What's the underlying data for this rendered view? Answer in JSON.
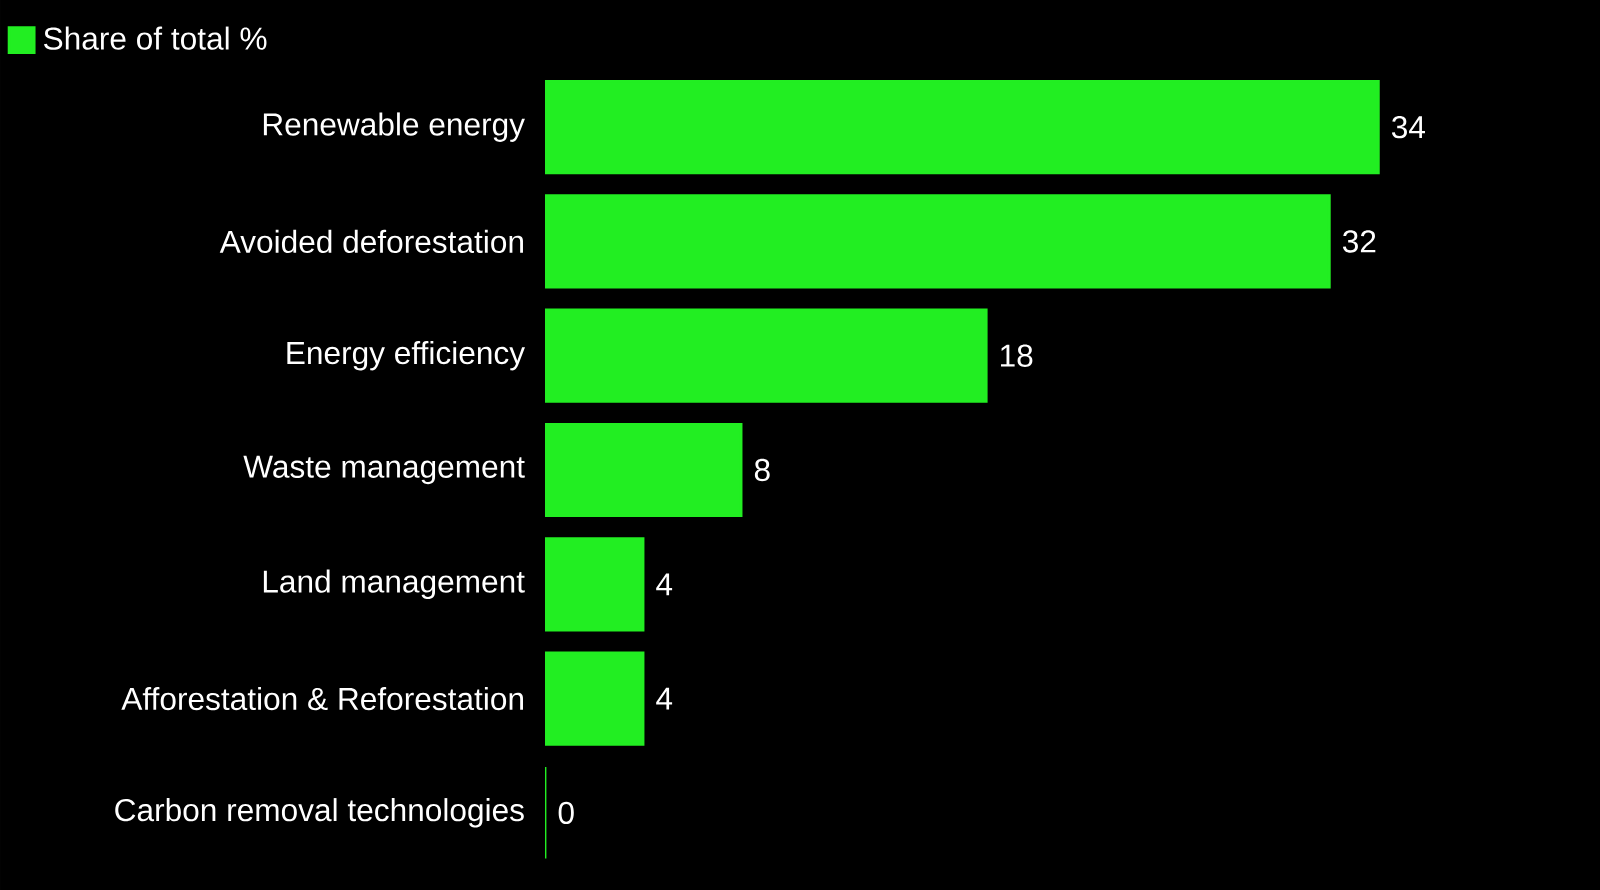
{
  "chart_data": {
    "type": "bar",
    "orientation": "horizontal",
    "categories": [
      "Renewable energy",
      "Avoided deforestation",
      "Energy efficiency",
      "Waste management",
      "Land management",
      "Afforestation & Reforestation",
      "Carbon removal technologies"
    ],
    "series": [
      {
        "name": "Share of total %",
        "color": "#22ee22",
        "values": [
          34,
          32,
          18,
          8,
          4,
          4,
          0
        ]
      }
    ],
    "data_labels": true,
    "legend": "top left"
  }
}
